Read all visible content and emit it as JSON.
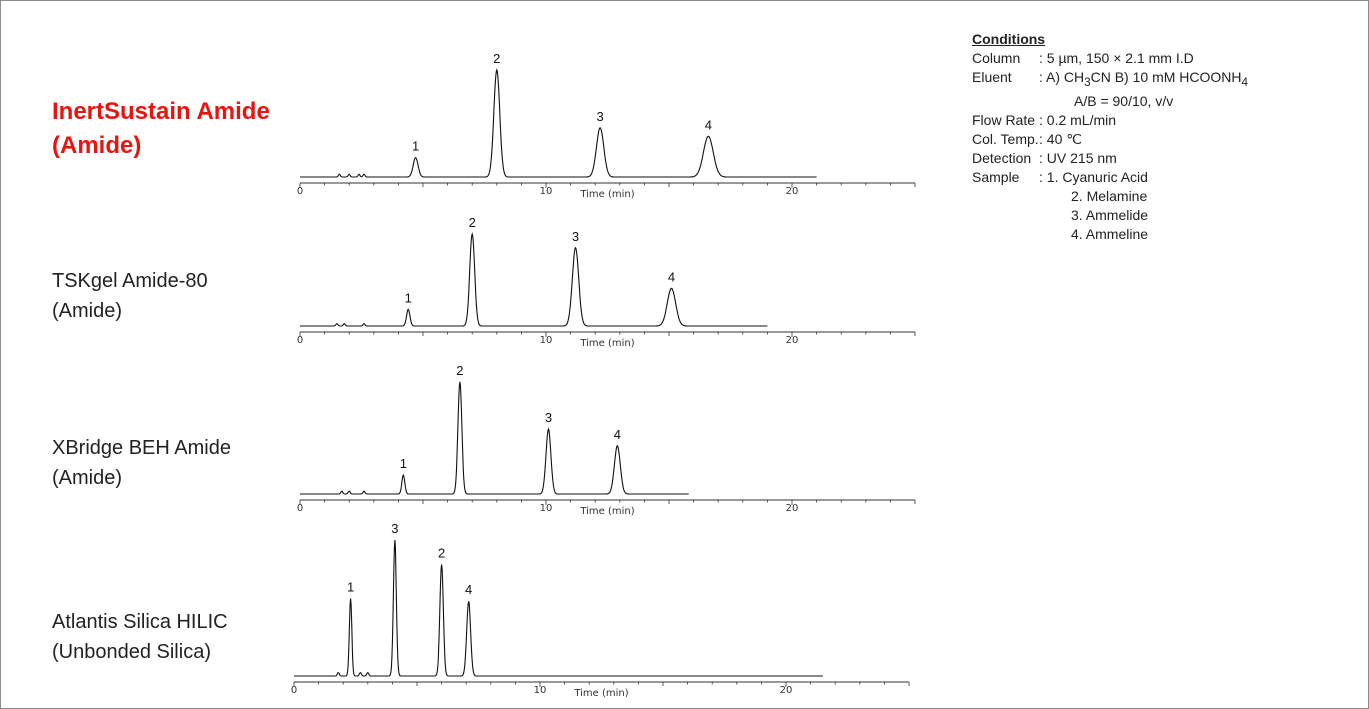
{
  "chart_data": {
    "type": "line",
    "xlabel": "Time (min)",
    "x_ticks": [
      0,
      10,
      20
    ],
    "xlim": [
      0,
      25
    ],
    "panels": [
      {
        "name_line1": "InertSustain Amide",
        "name_line2": "(Amide)",
        "highlight": true,
        "run_end": 21,
        "peaks": [
          {
            "label": "1",
            "t": 4.7,
            "h": 0.18,
            "w": 0.1
          },
          {
            "label": "2",
            "t": 8.0,
            "h": 1.0,
            "w": 0.12
          },
          {
            "label": "3",
            "t": 12.2,
            "h": 0.46,
            "w": 0.15
          },
          {
            "label": "4",
            "t": 16.6,
            "h": 0.38,
            "w": 0.2
          }
        ],
        "minor": [
          1.6,
          2.0,
          2.4,
          2.6
        ]
      },
      {
        "name_line1": "TSKgel Amide-80",
        "name_line2": "(Amide)",
        "highlight": false,
        "run_end": 19,
        "peaks": [
          {
            "label": "1",
            "t": 4.4,
            "h": 0.18,
            "w": 0.07
          },
          {
            "label": "2",
            "t": 7.0,
            "h": 1.0,
            "w": 0.1
          },
          {
            "label": "3",
            "t": 11.2,
            "h": 0.85,
            "w": 0.13
          },
          {
            "label": "4",
            "t": 15.1,
            "h": 0.41,
            "w": 0.17
          }
        ],
        "minor": [
          1.5,
          1.8,
          2.6
        ]
      },
      {
        "name_line1": "XBridge BEH Amide",
        "name_line2": "(Amide)",
        "highlight": false,
        "run_end": 15.8,
        "peaks": [
          {
            "label": "1",
            "t": 4.2,
            "h": 0.17,
            "w": 0.06
          },
          {
            "label": "2",
            "t": 6.5,
            "h": 1.0,
            "w": 0.08
          },
          {
            "label": "3",
            "t": 10.1,
            "h": 0.58,
            "w": 0.1
          },
          {
            "label": "4",
            "t": 12.9,
            "h": 0.43,
            "w": 0.12
          }
        ],
        "minor": [
          1.7,
          2.0,
          2.6
        ]
      },
      {
        "name_line1": "Atlantis Silica HILIC",
        "name_line2": "(Unbonded Silica)",
        "highlight": false,
        "run_end": 21.5,
        "peaks": [
          {
            "label": "1",
            "t": 2.3,
            "h": 0.57,
            "w": 0.05
          },
          {
            "label": "3",
            "t": 4.1,
            "h": 1.0,
            "w": 0.06
          },
          {
            "label": "2",
            "t": 6.0,
            "h": 0.82,
            "w": 0.07
          },
          {
            "label": "4",
            "t": 7.1,
            "h": 0.55,
            "w": 0.08
          }
        ],
        "minor": [
          1.8,
          2.7,
          3.0
        ]
      }
    ]
  },
  "conditions": {
    "title": "Conditions",
    "column_key": "Column",
    "column_val": ": 5 µm, 150 × 2.1 mm I.D",
    "eluent_key": "Eluent",
    "eluent_a": ": A) CH",
    "eluent_a_sub": "3",
    "eluent_a_tail": "CN   B) 10 mM HCOONH",
    "eluent_b_sub": "4",
    "eluent_ratio": "A/B = 90/10, v/v",
    "flow_key": "Flow Rate",
    "flow_val": ": 0.2 mL/min",
    "temp_key": "Col. Temp.",
    "temp_val": ": 40 ℃",
    "det_key": "Detection",
    "det_val": ": UV 215 nm",
    "sample_key": "Sample",
    "sample_1": ": 1. Cyanuric Acid",
    "sample_2": "2. Melamine",
    "sample_3": "3. Ammelide",
    "sample_4": "4. Ammeline"
  }
}
